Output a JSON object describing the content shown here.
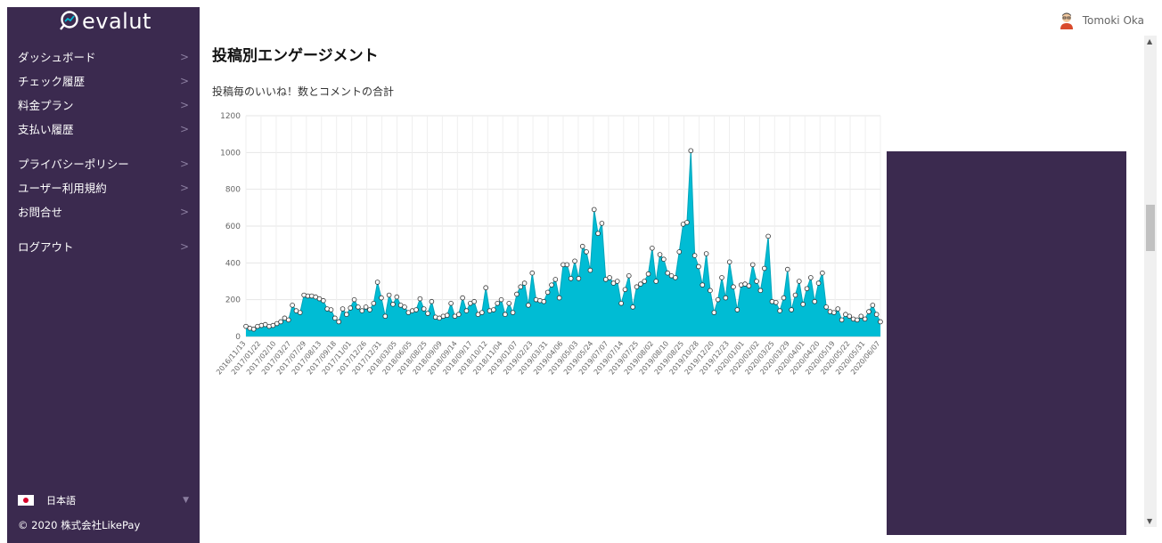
{
  "app": {
    "logo_text": "evalut"
  },
  "sidebar": {
    "items": [
      {
        "label": "ダッシュボード"
      },
      {
        "label": "チェック履歴"
      },
      {
        "label": "料金プラン"
      },
      {
        "label": "支払い履歴"
      },
      {
        "label": "プライバシーポリシー"
      },
      {
        "label": "ユーザー利用規約"
      },
      {
        "label": "お問合せ"
      },
      {
        "label": "ログアウト"
      }
    ],
    "language": "日本語",
    "copyright": "© 2020 株式会社LikePay"
  },
  "header": {
    "user_name": "Tomoki Oka"
  },
  "main": {
    "title": "投稿別エンゲージメント",
    "subtitle": "投稿毎のいいね！数とコメントの合計"
  },
  "colors": {
    "sidebar": "#3b2a4f",
    "chart_fill": "#00bcd4",
    "ad_block": "#3b2a4f"
  },
  "chart_data": {
    "type": "area",
    "ylim": [
      0,
      1200
    ],
    "yticks": [
      0,
      200,
      400,
      600,
      800,
      1000,
      1200
    ],
    "tick_labels": [
      "2016/11/13",
      "2017/01/22",
      "2017/02/10",
      "2017/03/27",
      "2017/07/29",
      "2017/08/13",
      "2017/09/18",
      "2017/11/01",
      "2017/12/26",
      "2017/12/31",
      "2018/03/05",
      "2018/06/05",
      "2018/08/25",
      "2018/09/09",
      "2018/09/14",
      "2018/09/17",
      "2018/10/12",
      "2018/11/04",
      "2019/01/07",
      "2019/02/23",
      "2019/03/31",
      "2019/04/06",
      "2019/05/03",
      "2019/05/24",
      "2019/07/07",
      "2019/07/14",
      "2019/07/25",
      "2019/08/02",
      "2019/08/10",
      "2019/08/25",
      "2019/10/28",
      "2019/12/20",
      "2019/12/23",
      "2020/01/01",
      "2020/02/02",
      "2020/03/25",
      "2020/03/29",
      "2020/04/01",
      "2020/04/20",
      "2020/05/19",
      "2020/05/22",
      "2020/05/31",
      "2020/06/07"
    ],
    "values": [
      55,
      45,
      40,
      55,
      60,
      65,
      55,
      60,
      70,
      80,
      100,
      90,
      170,
      140,
      130,
      225,
      220,
      220,
      215,
      205,
      195,
      150,
      145,
      100,
      80,
      150,
      120,
      155,
      200,
      160,
      140,
      160,
      145,
      180,
      295,
      210,
      110,
      225,
      175,
      215,
      170,
      160,
      130,
      140,
      145,
      205,
      150,
      125,
      190,
      105,
      100,
      110,
      115,
      180,
      110,
      120,
      210,
      140,
      180,
      190,
      120,
      130,
      265,
      140,
      145,
      180,
      200,
      120,
      180,
      130,
      230,
      270,
      290,
      170,
      345,
      200,
      195,
      190,
      240,
      280,
      310,
      210,
      390,
      390,
      315,
      410,
      315,
      490,
      460,
      360,
      690,
      560,
      615,
      310,
      320,
      290,
      300,
      180,
      255,
      330,
      160,
      270,
      285,
      300,
      340,
      480,
      300,
      445,
      420,
      345,
      330,
      320,
      460,
      610,
      620,
      1010,
      440,
      380,
      280,
      450,
      250,
      130,
      200,
      320,
      210,
      405,
      270,
      145,
      280,
      285,
      275,
      390,
      300,
      250,
      370,
      545,
      190,
      185,
      140,
      210,
      365,
      145,
      225,
      300,
      175,
      260,
      320,
      190,
      290,
      345,
      160,
      135,
      130,
      150,
      90,
      120,
      110,
      95,
      90,
      110,
      95,
      135,
      170,
      120,
      80
    ]
  }
}
